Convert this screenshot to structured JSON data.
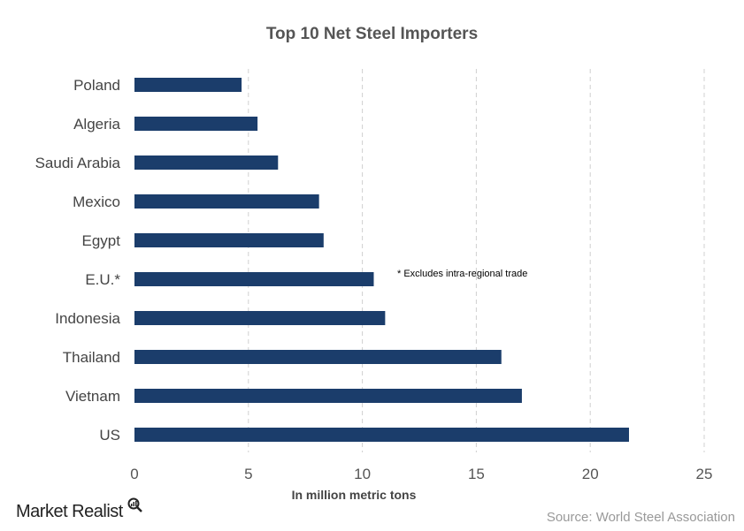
{
  "chart_data": {
    "type": "bar",
    "orientation": "horizontal",
    "title": "Top 10 Net Steel Importers",
    "xlabel": "In million metric tons",
    "ylabel": "",
    "categories": [
      "Poland",
      "Algeria",
      "Saudi Arabia",
      "Mexico",
      "Egypt",
      "E.U.*",
      "Indonesia",
      "Thailand",
      "Vietnam",
      "US"
    ],
    "values": [
      4.7,
      5.4,
      6.3,
      8.1,
      8.3,
      10.5,
      11.0,
      16.1,
      17.0,
      21.7
    ],
    "xlim": [
      0,
      25
    ],
    "xticks": [
      "0",
      "5",
      "10",
      "15",
      "20",
      "25"
    ],
    "grid": "vertical dashed",
    "bar_color": "#1b3d6b",
    "annotation": "* Excludes intra-regional trade",
    "source": "Source: World Steel Association"
  },
  "branding": {
    "logo": "Market Realist"
  }
}
